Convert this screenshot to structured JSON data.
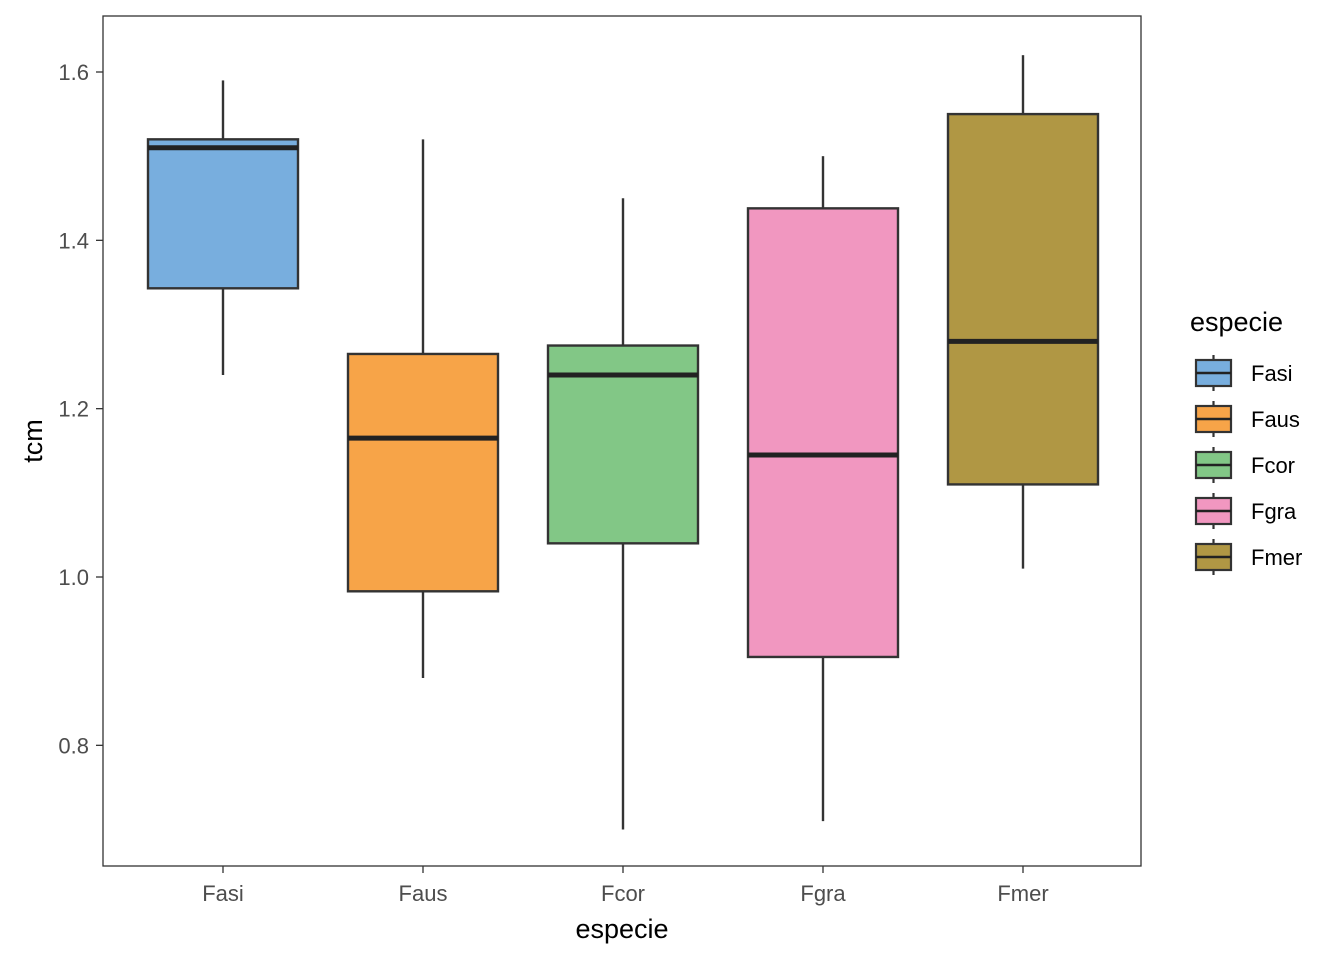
{
  "chart_data": {
    "type": "boxplot",
    "title": "",
    "xlabel": "especie",
    "ylabel": "tcm",
    "ylim": [
      0.65,
      1.66
    ],
    "yticks": [
      0.8,
      1.0,
      1.2,
      1.4,
      1.6
    ],
    "ytick_labels": [
      "0.8",
      "1.0",
      "1.2",
      "1.4",
      "1.6"
    ],
    "categories": [
      "Fasi",
      "Faus",
      "Fcor",
      "Fgra",
      "Fmer"
    ],
    "boxes": [
      {
        "name": "Fasi",
        "whisker_low": 1.24,
        "q1": 1.343,
        "median": 1.51,
        "q3": 1.52,
        "whisker_high": 1.59,
        "color": "#78AEDE"
      },
      {
        "name": "Faus",
        "whisker_low": 0.88,
        "q1": 0.983,
        "median": 1.165,
        "q3": 1.265,
        "whisker_high": 1.52,
        "color": "#F7A448"
      },
      {
        "name": "Fcor",
        "whisker_low": 0.7,
        "q1": 1.04,
        "median": 1.24,
        "q3": 1.275,
        "whisker_high": 1.45,
        "color": "#82C786"
      },
      {
        "name": "Fgra",
        "whisker_low": 0.71,
        "q1": 0.905,
        "median": 1.145,
        "q3": 1.438,
        "whisker_high": 1.5,
        "color": "#F197C0"
      },
      {
        "name": "Fmer",
        "whisker_low": 1.01,
        "q1": 1.11,
        "median": 1.28,
        "q3": 1.55,
        "whisker_high": 1.62,
        "color": "#B09744"
      }
    ],
    "legend": {
      "title": "especie",
      "position": "right",
      "entries": [
        "Fasi",
        "Faus",
        "Fcor",
        "Fgra",
        "Fmer"
      ]
    },
    "grid": false
  }
}
